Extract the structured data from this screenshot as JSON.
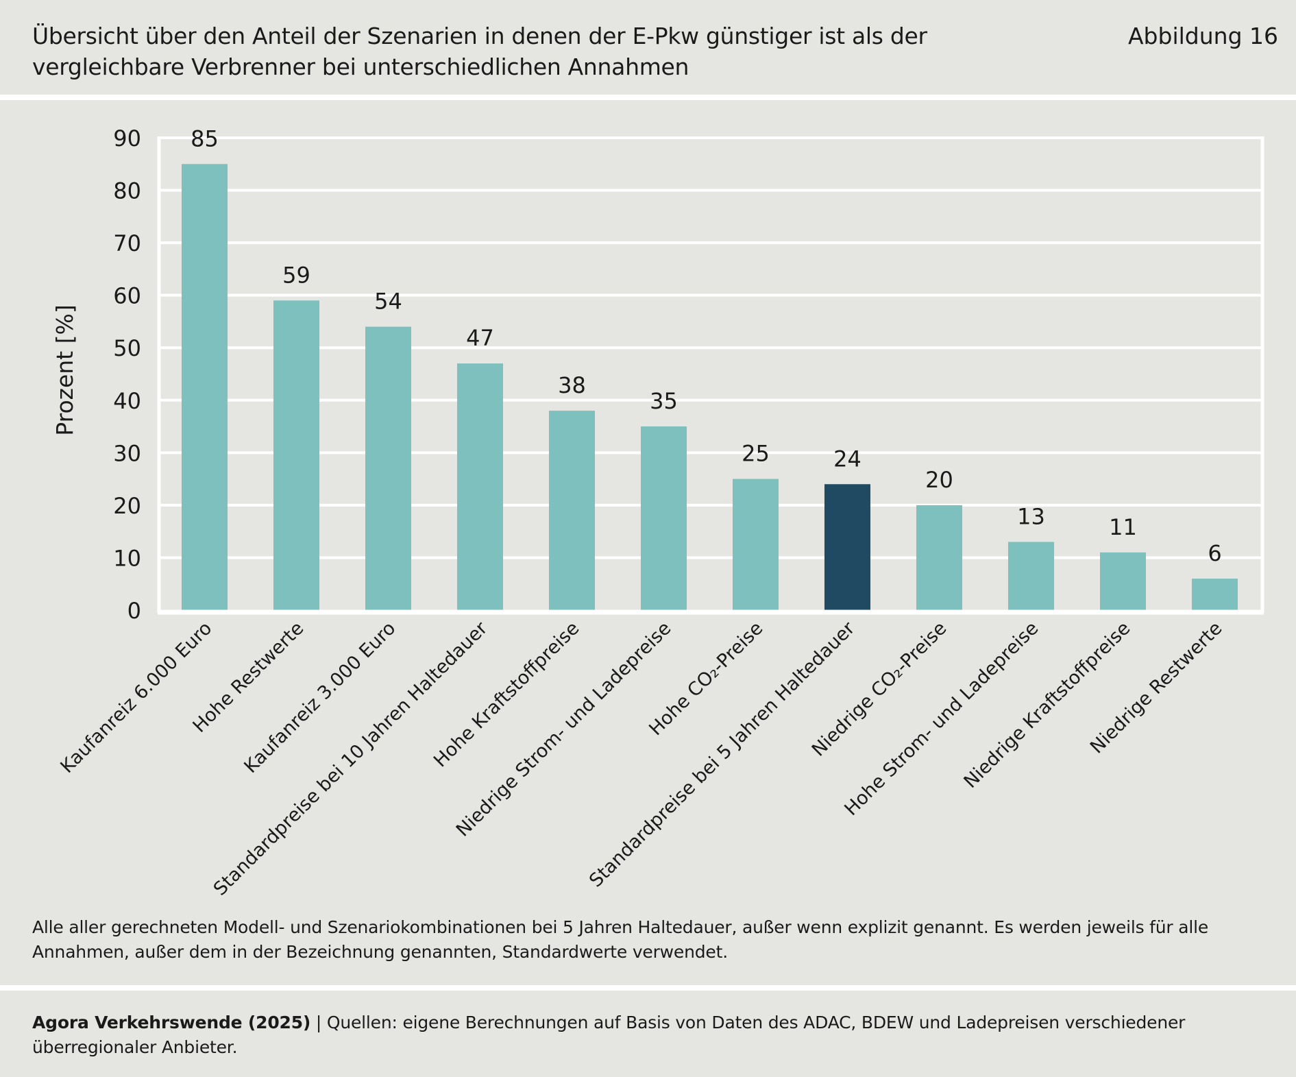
{
  "header": {
    "title": "Übersicht über den Anteil der Szenarien in denen der E-Pkw günstiger ist als der vergleichbare Verbrenner bei unterschiedlichen Annahmen",
    "figure_label": "Abbildung 16"
  },
  "colors": {
    "background": "#e5e5e1",
    "bar_default": "#7dc0bd",
    "bar_highlight": "#1f4a62",
    "grid": "#ffffff",
    "text": "#1a1a1a"
  },
  "chart_data": {
    "type": "bar",
    "title": "Übersicht über den Anteil der Szenarien in denen der E-Pkw günstiger ist als der vergleichbare Verbrenner bei unterschiedlichen Annahmen",
    "xlabel": "",
    "ylabel": "Prozent [%]",
    "ylim": [
      0,
      90
    ],
    "yticks": [
      0,
      10,
      20,
      30,
      40,
      50,
      60,
      70,
      80,
      90
    ],
    "grid": true,
    "legend": "none",
    "categories": [
      "Kaufanreiz 6.000 Euro",
      "Hohe Restwerte",
      "Kaufanreiz 3.000 Euro",
      "Standardpreise bei 10 Jahren Haltedauer",
      "Hohe Kraftstoffpreise",
      "Niedrige Strom- und Ladepreise",
      "Hohe CO₂-Preise",
      "Standardpreise bei 5 Jahren Haltedauer",
      "Niedrige CO₂-Preise",
      "Hohe Strom- und Ladepreise",
      "Niedrige Kraftstoffpreise",
      "Niedrige Restwerte"
    ],
    "values": [
      85,
      59,
      54,
      47,
      38,
      35,
      25,
      24,
      20,
      13,
      11,
      6
    ],
    "data_labels": [
      "85",
      "59",
      "54",
      "47",
      "38",
      "35",
      "25",
      "24",
      "20",
      "13",
      "11",
      "6"
    ],
    "highlight_index": 7
  },
  "footer": {
    "note": "Alle aller gerechneten Modell- und Szenariokombinationen bei 5 Jahren Haltedauer, außer wenn explizit genannt. Es werden jeweils für alle Annahmen, außer dem in der Bezeichnung genannten, Standardwerte verwendet.",
    "source_author": "Agora Verkehrswende (2025)",
    "source_separator": " | ",
    "source_text": "Quellen: eigene Berechnungen auf Basis von Daten des ADAC, BDEW und Ladepreisen verschiedener überregionaler Anbieter."
  }
}
